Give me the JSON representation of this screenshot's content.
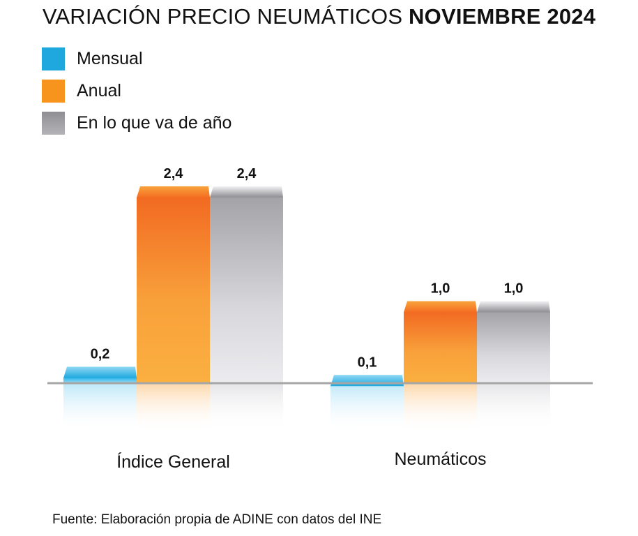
{
  "title": {
    "main": "VARIACIÓN PRECIO NEUMÁTICOS",
    "bold": "NOVIEMBRE 2024"
  },
  "source": "Fuente: Elaboración propia de ADINE con datos del INE",
  "colors": {
    "mensual": "#1fa8de",
    "anual": "#f7941d",
    "anio": "#9d9da1",
    "axis": "#a6a6a6"
  },
  "chart_data": {
    "type": "bar",
    "categories": [
      "Índice General",
      "Neumáticos"
    ],
    "series": [
      {
        "name": "Mensual",
        "values": [
          0.2,
          0.1
        ],
        "labels": [
          "0,2",
          "0,1"
        ]
      },
      {
        "name": "Anual",
        "values": [
          2.4,
          1.0
        ],
        "labels": [
          "2,4",
          "1,0"
        ]
      },
      {
        "name": "En lo que va de año",
        "values": [
          2.4,
          1.0
        ],
        "labels": [
          "2,4",
          "1,0"
        ]
      }
    ],
    "title": "VARIACIÓN PRECIO NEUMÁTICOS NOVIEMBRE 2024",
    "xlabel": "",
    "ylabel": "",
    "ylim": [
      0,
      2.4
    ],
    "grid": false,
    "legend": "top-left"
  }
}
